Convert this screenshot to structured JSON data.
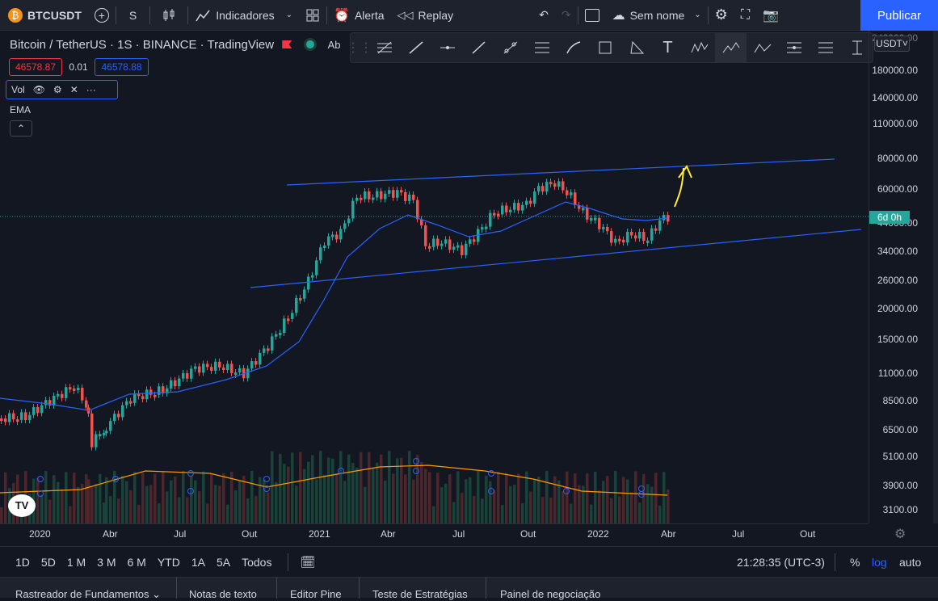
{
  "toolbar": {
    "symbol": "BTCUSDT",
    "interval": "S",
    "indicators": "Indicadores",
    "alert": "Alerta",
    "replay": "Replay",
    "layout_name": "Sem nome",
    "publish": "Publicar"
  },
  "chart_header": {
    "title": "Bitcoin / TetherUS · 1S · BINANCE · TradingView",
    "truncated": "Ab",
    "bid": "46578.87",
    "spread": "0.01",
    "ask": "46578.88",
    "vol_label": "Vol",
    "ema_label": "EMA",
    "currency": "USDT"
  },
  "price_axis": {
    "labels": [
      "180000.00",
      "140000.00",
      "110000.00",
      "80000.00",
      "60000.00",
      "44000.00",
      "34000.00",
      "26000.00",
      "20000.00",
      "15000.00",
      "11000.00",
      "8500.00",
      "6500.00",
      "5100.00",
      "3900.00",
      "3100.00"
    ],
    "countdown": "6d 0h",
    "top_partial": "240000.00"
  },
  "time_axis": {
    "labels": [
      "2020",
      "Abr",
      "Jul",
      "Out",
      "2021",
      "Abr",
      "Jul",
      "Out",
      "2022",
      "Abr",
      "Jul",
      "Out"
    ]
  },
  "bottom": {
    "ranges": [
      "1D",
      "5D",
      "1 M",
      "3 M",
      "6 M",
      "YTD",
      "1A",
      "5A",
      "Todos"
    ],
    "clock": "21:28:35 (UTC-3)",
    "pct": "%",
    "log": "log",
    "auto": "auto"
  },
  "tabs": [
    "Rastreador de Fundamentos",
    "Notas de texto",
    "Editor Pine",
    "Teste de Estratégias",
    "Painel de negociação"
  ],
  "colors": {
    "bg": "#131722",
    "up": "#26a69a",
    "down": "#ef5350",
    "ema": "#2962ff",
    "vol_ma": "#ff9800",
    "accent": "#2962ff",
    "arrow": "#ffeb3b"
  }
}
